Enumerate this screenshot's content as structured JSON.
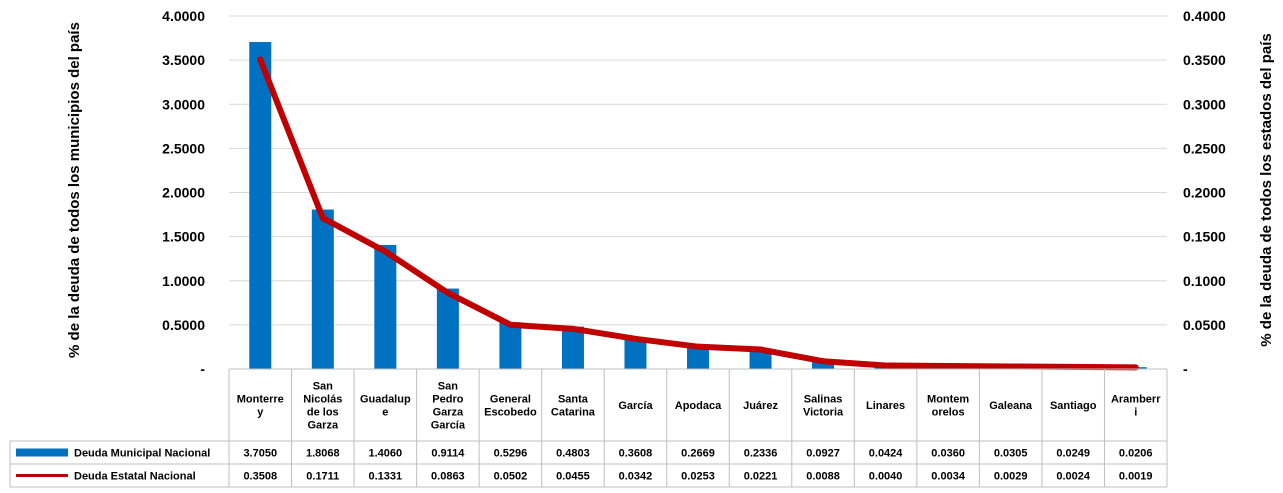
{
  "chart_data": {
    "type": "bar",
    "categories": [
      [
        "Monterre",
        "y"
      ],
      [
        "San",
        "Nicolás",
        "de los",
        "Garza"
      ],
      [
        "Guadalup",
        "e"
      ],
      [
        "San",
        "Pedro",
        "Garza",
        "García"
      ],
      [
        "General",
        "Escobedo"
      ],
      [
        "Santa",
        "Catarina"
      ],
      [
        "García"
      ],
      [
        "Apodaca"
      ],
      [
        "Juárez"
      ],
      [
        "Salinas",
        "Victoria"
      ],
      [
        "Linares"
      ],
      [
        "Montem",
        "orelos"
      ],
      [
        "Galeana"
      ],
      [
        "Santiago"
      ],
      [
        "Aramberr",
        "i"
      ]
    ],
    "series": [
      {
        "name": "Deuda Municipal Nacional",
        "type": "bar",
        "axis": "left",
        "color": "#0070c0",
        "values": [
          3.705,
          1.8068,
          1.406,
          0.9114,
          0.5296,
          0.4803,
          0.3608,
          0.2669,
          0.2336,
          0.0927,
          0.0424,
          0.036,
          0.0305,
          0.0249,
          0.0206
        ],
        "labels": [
          "3.7050",
          "1.8068",
          "1.4060",
          "0.9114",
          "0.5296",
          "0.4803",
          "0.3608",
          "0.2669",
          "0.2336",
          "0.0927",
          "0.0424",
          "0.0360",
          "0.0305",
          "0.0249",
          "0.0206"
        ]
      },
      {
        "name": "Deuda Estatal Nacional",
        "type": "line",
        "axis": "right",
        "color": "#c00000",
        "values": [
          0.3508,
          0.1711,
          0.1331,
          0.0863,
          0.0502,
          0.0455,
          0.0342,
          0.0253,
          0.0221,
          0.0088,
          0.004,
          0.0034,
          0.0029,
          0.0024,
          0.0019
        ],
        "labels": [
          "0.3508",
          "0.1711",
          "0.1331",
          "0.0863",
          "0.0502",
          "0.0455",
          "0.0342",
          "0.0253",
          "0.0221",
          "0.0088",
          "0.0040",
          "0.0034",
          "0.0029",
          "0.0024",
          "0.0019"
        ]
      }
    ],
    "ylabel": "% de la deuda  de todos los municipios del país",
    "y2label": "% de la deuda de todos los estados del país",
    "ylim": [
      0,
      4
    ],
    "y2lim": [
      0,
      0.4
    ],
    "yticks": [
      "-",
      "0.5000",
      "1.0000",
      "1.5000",
      "2.0000",
      "2.5000",
      "3.0000",
      "3.5000",
      "4.0000"
    ],
    "y2ticks": [
      "-",
      "0.0500",
      "0.1000",
      "0.1500",
      "0.2000",
      "0.2500",
      "0.3000",
      "0.3500",
      "0.4000"
    ],
    "grid": true,
    "legend": "data-table"
  }
}
